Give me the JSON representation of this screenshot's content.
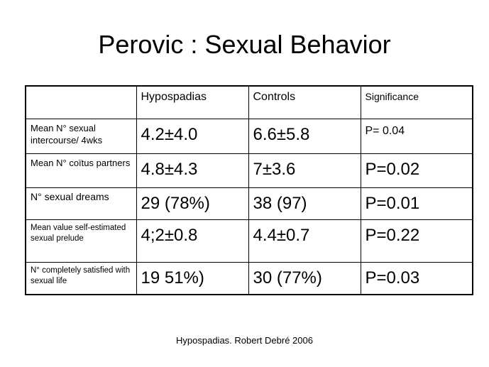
{
  "title": "Perovic : Sexual Behavior",
  "table": {
    "header": [
      "Hypospadias",
      "Controls",
      "Significance"
    ],
    "rows": [
      [
        "Mean N° sexual intercourse/ 4wks",
        "4.2±4.0",
        "6.6±5.8",
        "P= 0.04"
      ],
      [
        "Mean N° coïtus partners",
        "4.8±4.3",
        "7±3.6",
        "P=0.02"
      ],
      [
        "N° sexual dreams",
        "29 (78%)",
        "38 (97)",
        "P=0.01"
      ],
      [
        "Mean value self-estimated sexual prelude",
        "4;2±0.8",
        "4.4±0.7",
        "P=0.22"
      ],
      [
        "N° completely satisfied with sexual life",
        "19 51%)",
        "30 (77%)",
        "P=0.03"
      ]
    ]
  },
  "footer": "Hypospadias. Robert Debré 2006"
}
